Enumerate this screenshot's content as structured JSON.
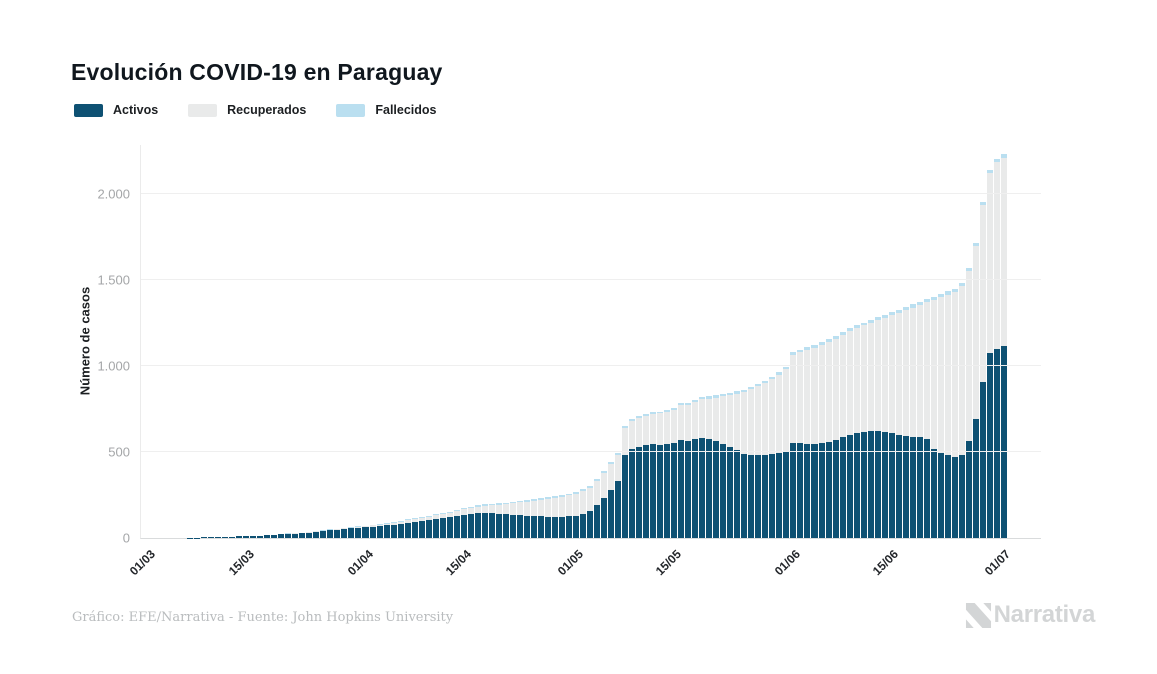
{
  "title": "Evolución COVID-19 en Paraguay",
  "legend": {
    "items": [
      {
        "label": "Activos",
        "color": "#0e5173"
      },
      {
        "label": "Recuperados",
        "color": "#e9eaea"
      },
      {
        "label": "Fallecidos",
        "color": "#badff0"
      }
    ]
  },
  "y_axis": {
    "title": "Número de casos",
    "ticks": [
      {
        "label": "0",
        "value": 0
      },
      {
        "label": "500",
        "value": 500
      },
      {
        "label": "1.000",
        "value": 1000
      },
      {
        "label": "1.500",
        "value": 1500
      },
      {
        "label": "2.000",
        "value": 2000
      }
    ]
  },
  "x_axis": {
    "ticks": [
      {
        "label": "01/03",
        "day": 0
      },
      {
        "label": "15/03",
        "day": 14
      },
      {
        "label": "01/04",
        "day": 31
      },
      {
        "label": "15/04",
        "day": 45
      },
      {
        "label": "01/05",
        "day": 61
      },
      {
        "label": "15/05",
        "day": 75
      },
      {
        "label": "01/06",
        "day": 92
      },
      {
        "label": "15/06",
        "day": 106
      },
      {
        "label": "01/07",
        "day": 122
      }
    ]
  },
  "footer": {
    "credit": "Gráfico: EFE/Narrativa - Fuente: John Hopkins University",
    "logo_text": "Narrativa"
  },
  "chart_data": {
    "type": "bar",
    "stacked": true,
    "title": "Evolución COVID-19 en Paraguay",
    "ylabel": "Número de casos",
    "xlabel": "",
    "ylim": [
      0,
      2285
    ],
    "grid": true,
    "legend_position": "top-left",
    "x_unit": "day",
    "x_range": [
      "01/03",
      "01/07"
    ],
    "n_points": 123,
    "x_tick_labels": [
      "01/03",
      "15/03",
      "01/04",
      "15/04",
      "01/05",
      "15/05",
      "01/06",
      "15/06",
      "01/07"
    ],
    "series": [
      {
        "name": "Activos",
        "color": "#0e5173",
        "values": [
          0,
          0,
          0,
          0,
          0,
          0,
          1,
          2,
          3,
          4,
          5,
          6,
          8,
          9,
          9,
          11,
          13,
          15,
          18,
          21,
          26,
          26,
          27,
          32,
          37,
          41,
          46,
          49,
          52,
          56,
          58,
          62,
          66,
          69,
          73,
          77,
          82,
          88,
          92,
          97,
          103,
          108,
          114,
          120,
          128,
          134,
          140,
          145,
          147,
          145,
          142,
          138,
          135,
          133,
          130,
          128,
          126,
          124,
          123,
          124,
          126,
          130,
          140,
          155,
          190,
          230,
          280,
          330,
          480,
          520,
          530,
          540,
          545,
          540,
          545,
          550,
          570,
          565,
          575,
          580,
          575,
          565,
          548,
          530,
          510,
          490,
          485,
          482,
          485,
          490,
          495,
          500,
          555,
          550,
          545,
          548,
          552,
          560,
          570,
          585,
          600,
          610,
          618,
          625,
          620,
          615,
          610,
          600,
          595,
          590,
          585,
          575,
          520,
          495,
          480,
          470,
          480,
          566,
          691,
          910,
          1075,
          1100,
          1116
        ]
      },
      {
        "name": "Recuperados",
        "color": "#e9eaea",
        "values": [
          0,
          0,
          0,
          0,
          0,
          0,
          0,
          0,
          0,
          0,
          0,
          0,
          0,
          0,
          0,
          0,
          0,
          0,
          0,
          0,
          0,
          1,
          1,
          1,
          2,
          2,
          3,
          3,
          4,
          5,
          6,
          7,
          8,
          9,
          10,
          12,
          14,
          16,
          18,
          20,
          22,
          24,
          26,
          28,
          30,
          32,
          34,
          37,
          40,
          46,
          52,
          60,
          68,
          75,
          82,
          89,
          96,
          103,
          110,
          116,
          122,
          128,
          133,
          138,
          142,
          146,
          150,
          154,
          158,
          162,
          167,
          172,
          177,
          184,
          190,
          196,
          202,
          210,
          218,
          226,
          236,
          252,
          275,
          300,
          330,
          360,
          380,
          400,
          415,
          432,
          455,
          480,
          510,
          530,
          548,
          558,
          570,
          580,
          590,
          596,
          602,
          610,
          618,
          625,
          645,
          665,
          685,
          710,
          730,
          750,
          770,
          795,
          865,
          905,
          935,
          960,
          985,
          985,
          1005,
          1025,
          1045,
          1085,
          1095
        ]
      },
      {
        "name": "Fallecidos",
        "color": "#badff0",
        "values": [
          0,
          0,
          0,
          0,
          0,
          0,
          0,
          0,
          0,
          0,
          0,
          0,
          0,
          0,
          0,
          0,
          0,
          0,
          0,
          1,
          1,
          1,
          2,
          2,
          3,
          3,
          3,
          3,
          3,
          3,
          3,
          3,
          3,
          3,
          3,
          3,
          3,
          4,
          4,
          4,
          5,
          5,
          5,
          6,
          6,
          7,
          7,
          8,
          8,
          8,
          8,
          8,
          9,
          9,
          9,
          9,
          9,
          10,
          10,
          10,
          10,
          10,
          10,
          11,
          11,
          11,
          11,
          11,
          11,
          11,
          11,
          11,
          11,
          11,
          11,
          11,
          11,
          11,
          12,
          12,
          12,
          12,
          13,
          13,
          13,
          13,
          14,
          14,
          14,
          15,
          15,
          15,
          15,
          15,
          16,
          16,
          16,
          16,
          17,
          17,
          17,
          17,
          17,
          17,
          18,
          18,
          18,
          18,
          18,
          18,
          19,
          19,
          19,
          19,
          19,
          19,
          19,
          19,
          19,
          20,
          20,
          20,
          20
        ]
      }
    ]
  }
}
